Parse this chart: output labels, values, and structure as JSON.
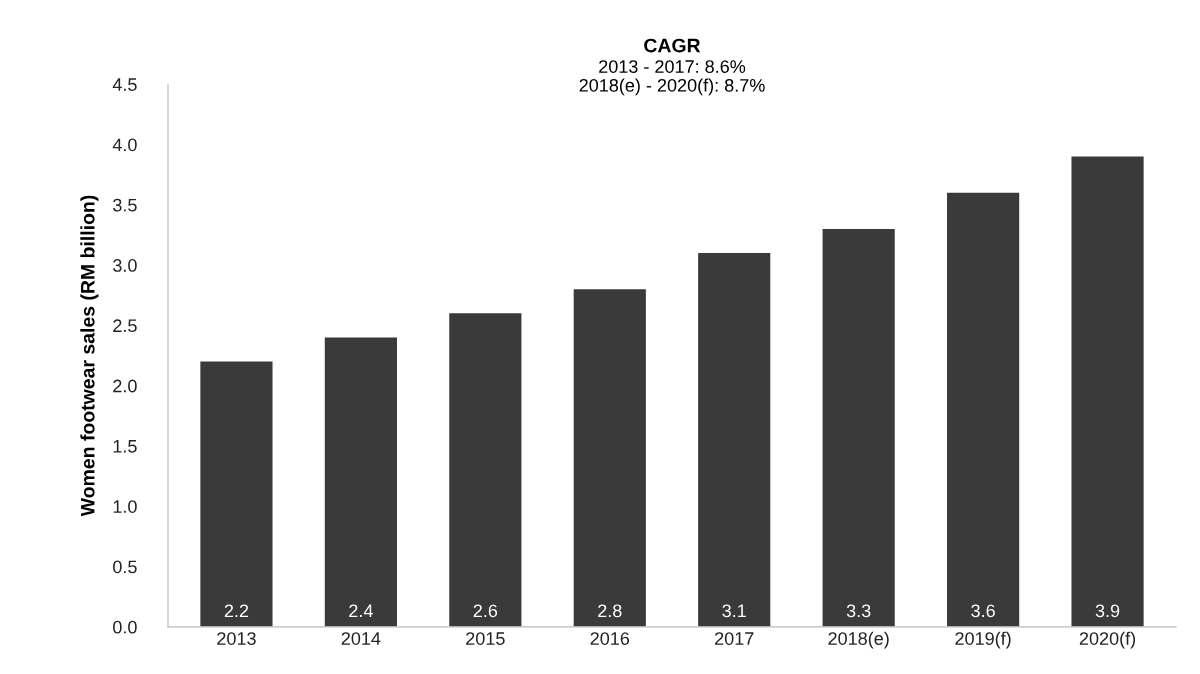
{
  "chart_data": {
    "type": "bar",
    "title": "CAGR",
    "subtitle": "2013 - 2017: 8.6%\n2018(e) - 2020(f): 8.7%",
    "ylabel": "Women footwear sales (RM billion)",
    "categories": [
      "2013",
      "2014",
      "2015",
      "2016",
      "2017",
      "2018(e)",
      "2019(f)",
      "2020(f)"
    ],
    "values": [
      2.2,
      2.4,
      2.6,
      2.8,
      3.1,
      3.3,
      3.6,
      3.9
    ],
    "color": "#3a3a3a",
    "ylim": [
      0,
      4.5
    ],
    "yticks": [
      {
        "value": 0,
        "label": "0.0"
      },
      {
        "value": 0.5,
        "label": "0.5"
      },
      {
        "value": 1,
        "label": "1.0"
      },
      {
        "value": 1.5,
        "label": "1.5"
      },
      {
        "value": 2,
        "label": "2.0"
      },
      {
        "value": 2.5,
        "label": "2.5"
      },
      {
        "value": 3,
        "label": "3.0"
      },
      {
        "value": 3.5,
        "label": "3.5"
      },
      {
        "value": 4,
        "label": "4.0"
      },
      {
        "value": 4.5,
        "label": "4.5"
      }
    ],
    "data_labels": true,
    "grid": false
  }
}
